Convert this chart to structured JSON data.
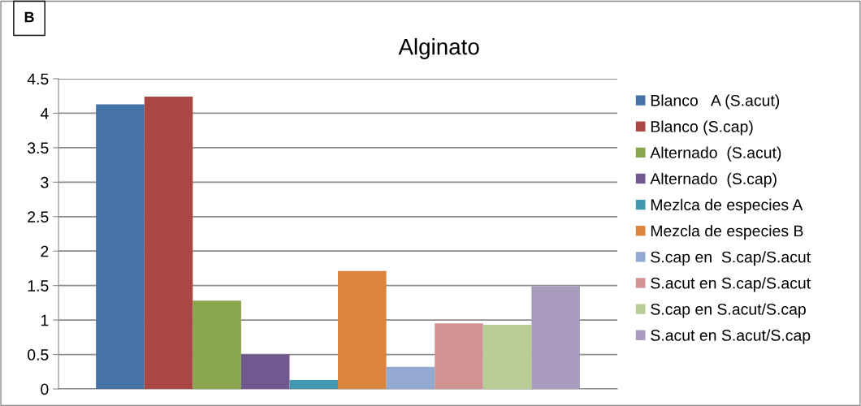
{
  "chart_data": {
    "type": "bar",
    "title": "Alginato",
    "annotations": [
      "B"
    ],
    "categories": [
      null
    ],
    "series": [
      {
        "name": "Blanco   A (S.acut)",
        "color": "#4572a7",
        "values": [
          4.13
        ]
      },
      {
        "name": "Blanco (S.cap)",
        "color": "#aa4643",
        "values": [
          4.24
        ]
      },
      {
        "name": "Alternado  (S.acut)",
        "color": "#89a54e",
        "values": [
          1.28
        ]
      },
      {
        "name": "Alternado  (S.cap)",
        "color": "#71588f",
        "values": [
          0.5
        ]
      },
      {
        "name": "Mezlca de especies A",
        "color": "#4198af",
        "values": [
          0.13
        ]
      },
      {
        "name": "Mezcla de especies B",
        "color": "#db843d",
        "values": [
          1.71
        ]
      },
      {
        "name": "S.cap en  S.cap/S.acut",
        "color": "#93a9cf",
        "values": [
          0.32
        ]
      },
      {
        "name": "S.acut en S.cap/S.acut",
        "color": "#d19392",
        "values": [
          0.95
        ]
      },
      {
        "name": "S.cap en S.acut/S.cap",
        "color": "#b9cd96",
        "values": [
          0.93
        ]
      },
      {
        "name": "S.acut en S.acut/S.cap",
        "color": "#a99bbd",
        "values": [
          1.49
        ]
      }
    ],
    "ylim": [
      0,
      4.5
    ],
    "yticks": [
      0,
      0.5,
      1,
      1.5,
      2,
      2.5,
      3,
      3.5,
      4,
      4.5
    ],
    "grid": "y",
    "legend": "right"
  }
}
